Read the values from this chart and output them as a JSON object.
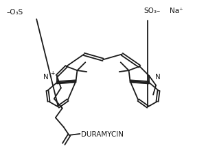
{
  "background_color": "#ffffff",
  "line_color": "#1a1a1a",
  "line_width": 1.3,
  "labels": {
    "so3_left": "–O₃S",
    "so3_right": "SO₃–",
    "na": "Na⁺",
    "n_plus": "N",
    "plus": "+",
    "n_right": "N",
    "duramycin": "DURAMYCIN"
  },
  "font_size": 7.5
}
